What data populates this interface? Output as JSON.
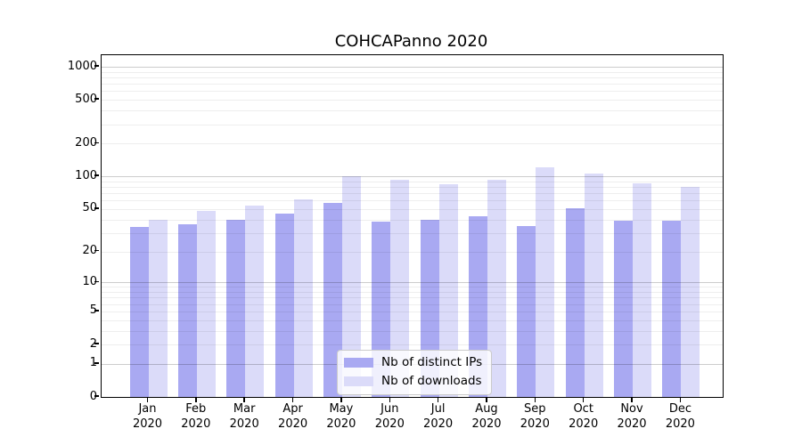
{
  "chart_data": {
    "type": "bar",
    "title": "COHCAPanno 2020",
    "scale": "log1p",
    "grid": "horizontal",
    "legend_position": "lower-center",
    "categories": [
      "Jan",
      "Feb",
      "Mar",
      "Apr",
      "May",
      "Jun",
      "Jul",
      "Aug",
      "Sep",
      "Oct",
      "Nov",
      "Dec"
    ],
    "year_label": "2020",
    "series": [
      {
        "name": "Nb of distinct IPs",
        "color": "#a9a9f2",
        "values": [
          34,
          36,
          40,
          45,
          57,
          38,
          40,
          43,
          35,
          51,
          39,
          39
        ]
      },
      {
        "name": "Nb of downloads",
        "color": "#dbdbf9",
        "values": [
          40,
          48,
          54,
          62,
          100,
          93,
          85,
          94,
          122,
          107,
          86,
          80
        ]
      }
    ],
    "yticks": [
      1000,
      500,
      200,
      100,
      50,
      20,
      10,
      5,
      2,
      1,
      0
    ],
    "ylim": [
      0,
      1300
    ],
    "xlabel": "",
    "ylabel": ""
  },
  "colors": {
    "axis": "#000000",
    "grid_minor": "rgba(0,0,0,0.065)",
    "grid_major": "rgba(0,0,0,0.20)",
    "legend_border": "#cbcbcb"
  }
}
